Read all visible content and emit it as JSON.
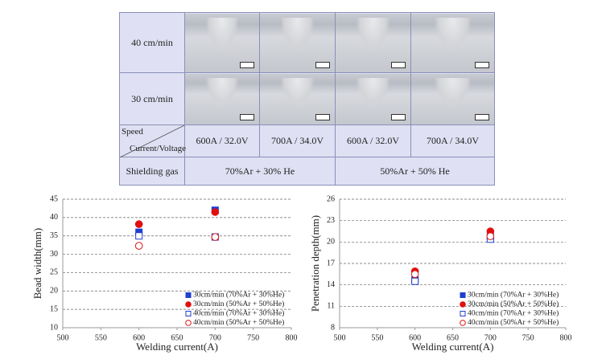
{
  "table": {
    "rows": [
      {
        "label": "40 cm/min"
      },
      {
        "label": "30 cm/min"
      }
    ],
    "header": {
      "speed": "Speed",
      "current_voltage": "Current/Voltage"
    },
    "conditions": [
      "600A / 32.0V",
      "700A / 34.0V",
      "600A / 32.0V",
      "700A / 34.0V"
    ],
    "gas_label": "Shielding gas",
    "gases": [
      "70%Ar + 30% He",
      "50%Ar + 50% He"
    ]
  },
  "chart_data": [
    {
      "type": "scatter",
      "ylabel": "Bead width(mm)",
      "xlabel": "Welding current(A)",
      "x": [
        600,
        700
      ],
      "xlim": [
        500,
        800
      ],
      "xticks": [
        500,
        550,
        600,
        650,
        700,
        750,
        800
      ],
      "ylim": [
        10,
        45
      ],
      "yticks": [
        10,
        15,
        20,
        25,
        30,
        35,
        40,
        45
      ],
      "grid": true,
      "legend": "lower right",
      "series": [
        {
          "name": "30cm/min (70%Ar + 30%He)",
          "color": "#1f3fd0",
          "marker": "square",
          "filled": true,
          "values": [
            36,
            42
          ]
        },
        {
          "name": "30cm/min (50%Ar + 50%He)",
          "color": "#e01010",
          "marker": "circle",
          "filled": true,
          "values": [
            38.2,
            41.5
          ]
        },
        {
          "name": "40cm/min (70%Ar + 30%He)",
          "color": "#1f3fd0",
          "marker": "square",
          "filled": false,
          "values": [
            35,
            34.7
          ]
        },
        {
          "name": "40cm/min (50%Ar + 50%He)",
          "color": "#e01010",
          "marker": "circle",
          "filled": false,
          "values": [
            32.3,
            34.7
          ]
        }
      ]
    },
    {
      "type": "scatter",
      "ylabel": "Penetration depth(mm)",
      "xlabel": "Welding current(A)",
      "x": [
        600,
        700
      ],
      "xlim": [
        500,
        800
      ],
      "xticks": [
        500,
        550,
        600,
        650,
        700,
        750,
        800
      ],
      "ylim": [
        8,
        26
      ],
      "yticks": [
        8,
        11,
        14,
        17,
        20,
        23,
        26
      ],
      "grid": true,
      "legend": "lower right",
      "series": [
        {
          "name": "30cm/min (70%Ar + 30%He)",
          "color": "#1f3fd0",
          "marker": "square",
          "filled": true,
          "values": [
            14.7,
            20.7
          ]
        },
        {
          "name": "30cm/min (50%Ar + 50%He)",
          "color": "#e01010",
          "marker": "circle",
          "filled": true,
          "values": [
            15.9,
            21.5
          ]
        },
        {
          "name": "40cm/min (70%Ar + 30%He)",
          "color": "#1f3fd0",
          "marker": "square",
          "filled": false,
          "values": [
            14.5,
            20.4
          ]
        },
        {
          "name": "40cm/min (50%Ar + 50%He)",
          "color": "#e01010",
          "marker": "circle",
          "filled": false,
          "values": [
            15.5,
            20.8
          ]
        }
      ]
    }
  ]
}
